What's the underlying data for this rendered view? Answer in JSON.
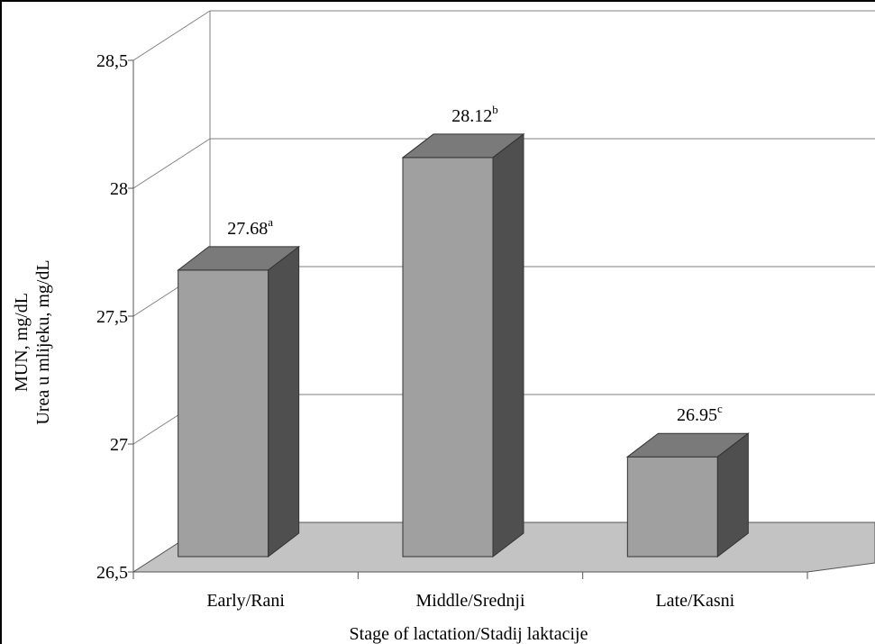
{
  "chart_data": {
    "type": "bar",
    "categories": [
      "Early/Rani",
      "Middle/Srednji",
      "Late/Kasni"
    ],
    "values": [
      27.68,
      28.12,
      26.95
    ],
    "data_labels": [
      {
        "value": "27.68",
        "superscript": "a"
      },
      {
        "value": "28.12",
        "superscript": "b"
      },
      {
        "value": "26.95",
        "superscript": "c"
      }
    ],
    "xlabel": "Stage of lactation/Stadij laktacije",
    "ylabel_lines": [
      "MUN, mg/dL",
      "Urea u mlijeku, mg/dL"
    ],
    "ylim": [
      26.5,
      28.5
    ],
    "yticks": [
      26.5,
      27,
      27.5,
      28,
      28.5
    ],
    "ytick_labels": [
      "26,5",
      "27",
      "27,5",
      "28",
      "28,5"
    ],
    "grid": true,
    "three_d": true,
    "colors": {
      "bar_front": "#a0a0a0",
      "bar_top": "#7a7a7a",
      "bar_side": "#4f4f4f",
      "floor": "#c3c3c3",
      "grid": "#7f7f7f"
    }
  }
}
